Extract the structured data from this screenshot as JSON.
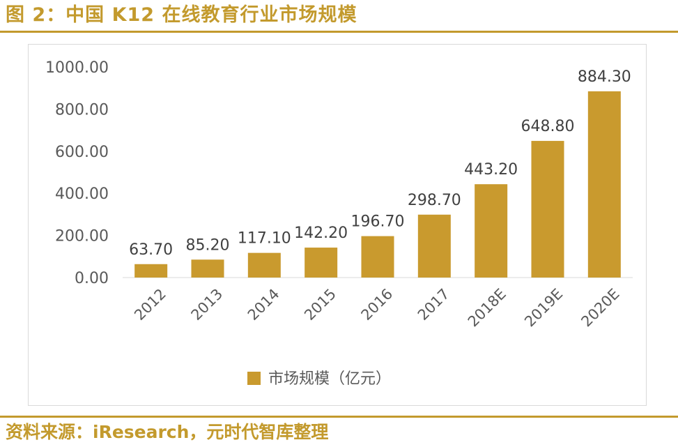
{
  "figure_title": "图 2：中国 K12 在线教育行业市场规模",
  "source_note": "资料来源：iResearch，元时代智库整理",
  "colors": {
    "accent": "#c39a2d",
    "bar": "#c99a2e",
    "axis_text": "#595959",
    "label_text": "#404040"
  },
  "chart_data": {
    "type": "bar",
    "categories": [
      "2012",
      "2013",
      "2014",
      "2015",
      "2016",
      "2017",
      "2018E",
      "2019E",
      "2020E"
    ],
    "series": [
      {
        "name": "市场规模（亿元）",
        "values": [
          63.7,
          85.2,
          117.1,
          142.2,
          196.7,
          298.7,
          443.2,
          648.8,
          884.3
        ]
      }
    ],
    "data_labels": [
      "63.70",
      "85.20",
      "117.10",
      "142.20",
      "196.70",
      "298.70",
      "443.20",
      "648.80",
      "884.30"
    ],
    "y_ticks": [
      "0.00",
      "200.00",
      "400.00",
      "600.00",
      "800.00",
      "1000.00"
    ],
    "ylim": [
      0,
      1000
    ],
    "grid": false,
    "legend_position": "bottom"
  }
}
